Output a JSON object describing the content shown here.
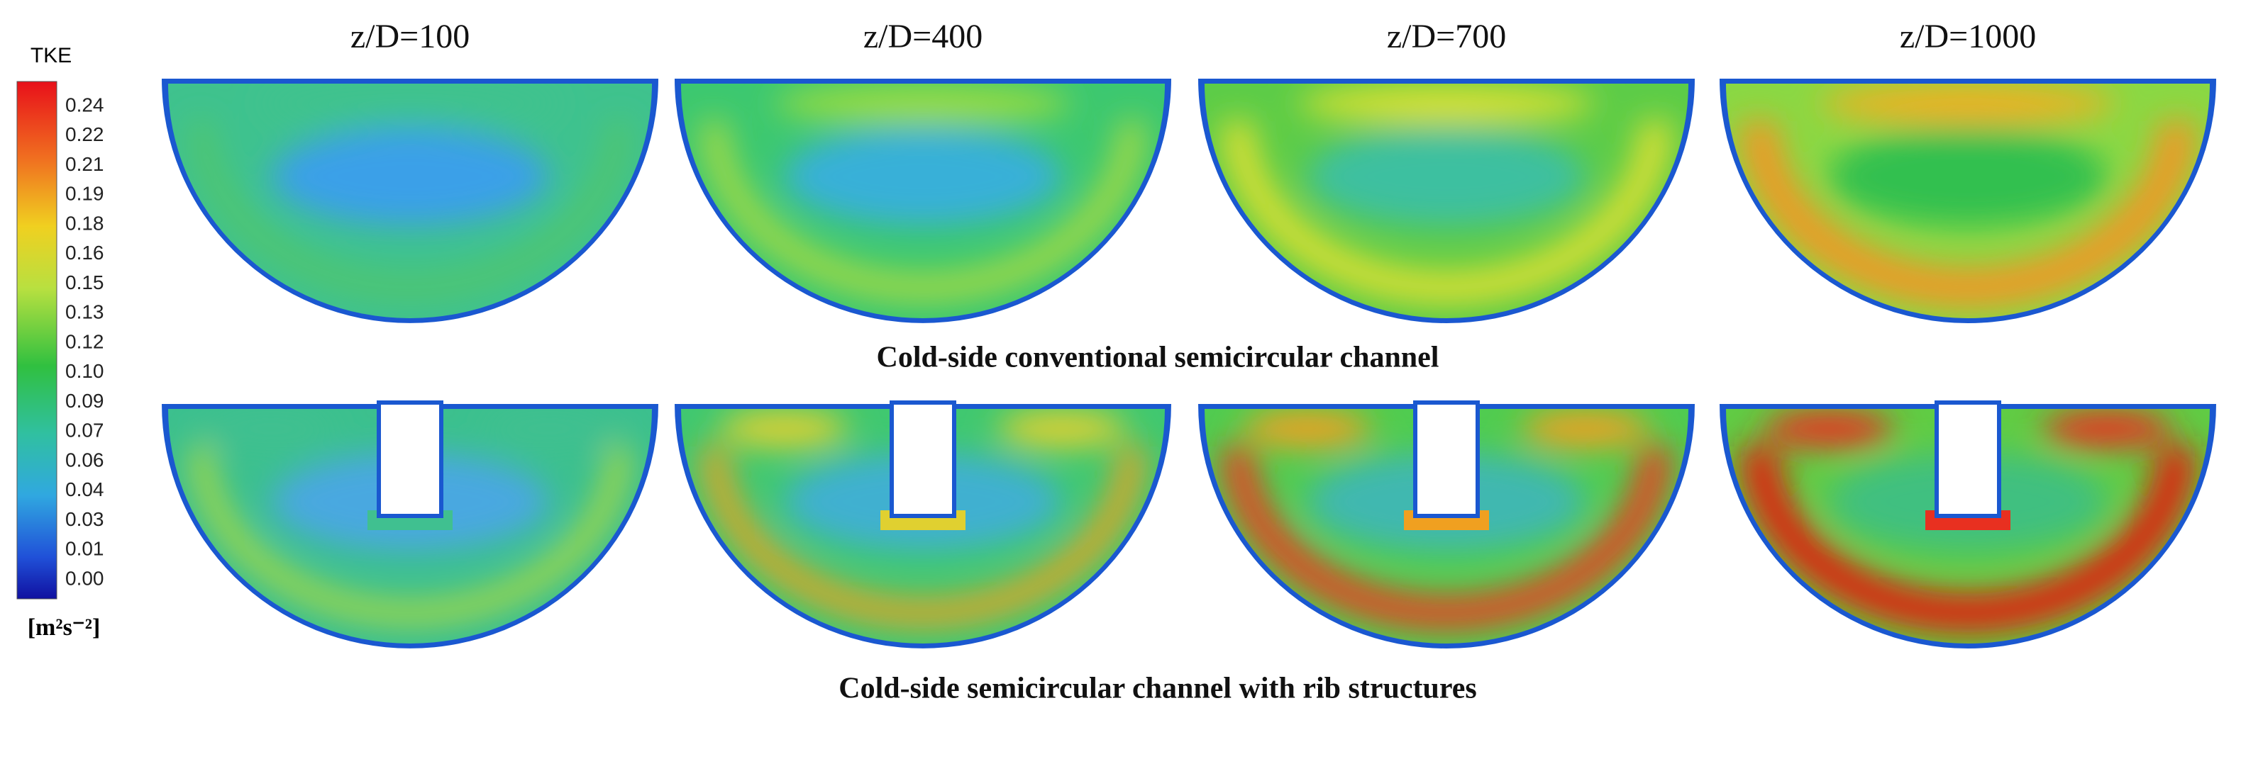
{
  "colorbar": {
    "title": "TKE",
    "ticks": [
      "0.24",
      "0.22",
      "0.21",
      "0.19",
      "0.18",
      "0.16",
      "0.15",
      "0.13",
      "0.12",
      "0.10",
      "0.09",
      "0.07",
      "0.06",
      "0.04",
      "0.03",
      "0.01",
      "0.00"
    ],
    "unit": "[m²s⁻²]"
  },
  "columns": [
    "z/D=100",
    "z/D=400",
    "z/D=700",
    "z/D=1000"
  ],
  "rows": [
    "Cold-side conventional semicircular channel",
    "Cold-side semicircular channel with rib structures"
  ]
}
